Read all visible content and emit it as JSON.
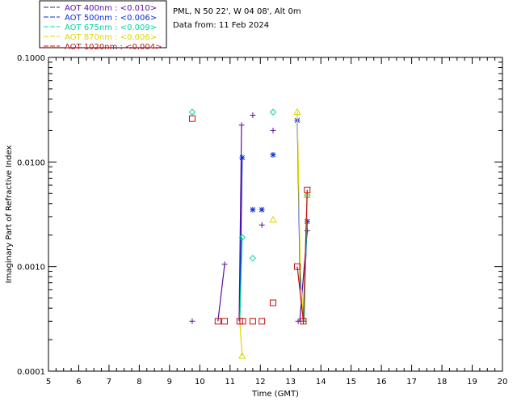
{
  "header": {
    "station": "PML, N 50 22', W 04 08', Alt 0m",
    "date_line": "Data from: 11 Feb 2024"
  },
  "legend": [
    {
      "label": "AOT  400nm : <0.010>",
      "color": "#5a10a0"
    },
    {
      "label": "AOT  500nm : <0.006>",
      "color": "#0a2cd8"
    },
    {
      "label": "AOT  675nm : <0.009>",
      "color": "#00d8a0"
    },
    {
      "label": "AOT  870nm : <0.006>",
      "color": "#d8d800"
    },
    {
      "label": "AOT 1020nm : <0.004>",
      "color": "#c81010"
    }
  ],
  "chart_data": {
    "type": "scatter",
    "xlabel": "Time (GMT)",
    "ylabel": "Imaginary Part of Refractive Index",
    "xlim": [
      5,
      20
    ],
    "ylim": [
      0.0001,
      0.1
    ],
    "y_scale": "log",
    "x_ticks": [
      "5",
      "6",
      "7",
      "8",
      "9",
      "10",
      "11",
      "12",
      "13",
      "14",
      "15",
      "16",
      "17",
      "18",
      "19",
      "20"
    ],
    "y_ticks": [
      {
        "value": 0.0001,
        "label": "0.0001"
      },
      {
        "value": 0.001,
        "label": "0.0010"
      },
      {
        "value": 0.01,
        "label": "0.0100"
      },
      {
        "value": 0.1,
        "label": "0.1000"
      }
    ],
    "series": [
      {
        "name": "AOT  400nm : <0.010>",
        "color": "#5a10a0",
        "marker": "plus",
        "points": [
          [
            9.75,
            0.0003
          ],
          [
            10.82,
            0.00105
          ],
          [
            11.38,
            0.0225
          ],
          [
            11.75,
            0.028
          ],
          [
            12.05,
            0.0025
          ],
          [
            12.42,
            0.02
          ],
          [
            13.25,
            0.0003
          ],
          [
            13.42,
            0.0003
          ],
          [
            13.55,
            0.0022
          ]
        ],
        "segments": [
          [
            [
              10.6,
              0.0003
            ],
            [
              10.82,
              0.00105
            ]
          ],
          [
            [
              11.3,
              0.0003
            ],
            [
              11.38,
              0.0225
            ]
          ],
          [
            [
              13.3,
              0.0003
            ],
            [
              13.55,
              0.0022
            ]
          ]
        ]
      },
      {
        "name": "AOT  500nm : <0.006>",
        "color": "#0a2cd8",
        "marker": "star",
        "points": [
          [
            11.4,
            0.011
          ],
          [
            11.75,
            0.0035
          ],
          [
            12.05,
            0.0035
          ],
          [
            12.42,
            0.0117
          ],
          [
            13.22,
            0.025
          ],
          [
            13.55,
            0.0027
          ]
        ],
        "segments": [
          [
            [
              11.32,
              0.0003
            ],
            [
              11.4,
              0.011
            ]
          ],
          [
            [
              13.22,
              0.025
            ],
            [
              13.32,
              0.0006
            ]
          ],
          [
            [
              13.42,
              0.0003
            ],
            [
              13.55,
              0.0027
            ]
          ]
        ]
      },
      {
        "name": "AOT  675nm : <0.009>",
        "color": "#00d8a0",
        "marker": "diamond",
        "points": [
          [
            9.75,
            0.03
          ],
          [
            11.4,
            0.0019
          ],
          [
            11.75,
            0.0012
          ],
          [
            12.42,
            0.03
          ],
          [
            13.55,
            0.0048
          ]
        ],
        "segments": [
          [
            [
              11.32,
              0.0003
            ],
            [
              11.4,
              0.0019
            ]
          ],
          [
            [
              13.45,
              0.0003
            ],
            [
              13.55,
              0.0048
            ]
          ]
        ]
      },
      {
        "name": "AOT  870nm : <0.006>",
        "color": "#d8d800",
        "marker": "triangle",
        "points": [
          [
            11.4,
            0.00014
          ],
          [
            12.42,
            0.0028
          ],
          [
            13.22,
            0.03
          ],
          [
            13.55,
            0.0048
          ]
        ],
        "segments": [
          [
            [
              11.4,
              0.00014
            ],
            [
              11.32,
              0.0003
            ]
          ],
          [
            [
              13.22,
              0.03
            ],
            [
              13.32,
              0.001
            ]
          ],
          [
            [
              13.32,
              0.001
            ],
            [
              13.42,
              0.0003
            ]
          ],
          [
            [
              13.42,
              0.0003
            ],
            [
              13.55,
              0.0048
            ]
          ]
        ]
      },
      {
        "name": "AOT 1020nm : <0.004>",
        "color": "#c81010",
        "marker": "square",
        "points": [
          [
            9.75,
            0.026
          ],
          [
            10.6,
            0.0003
          ],
          [
            10.82,
            0.0003
          ],
          [
            11.32,
            0.0003
          ],
          [
            11.42,
            0.0003
          ],
          [
            11.75,
            0.0003
          ],
          [
            12.05,
            0.0003
          ],
          [
            12.42,
            0.00045
          ],
          [
            13.22,
            0.001
          ],
          [
            13.42,
            0.0003
          ],
          [
            13.55,
            0.0054
          ]
        ],
        "segments": [
          [
            [
              13.22,
              0.001
            ],
            [
              13.42,
              0.0003
            ]
          ],
          [
            [
              13.42,
              0.0003
            ],
            [
              13.55,
              0.0054
            ]
          ]
        ]
      }
    ]
  }
}
